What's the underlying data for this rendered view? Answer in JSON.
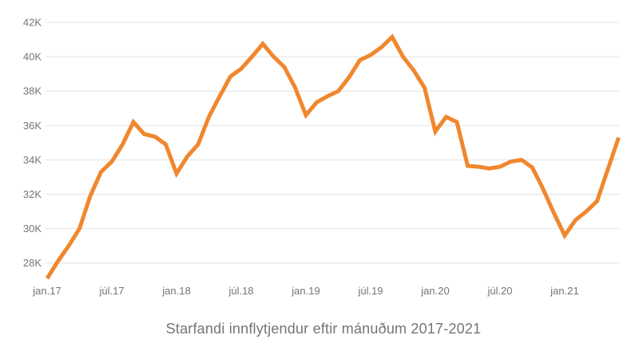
{
  "chart_data": {
    "type": "line",
    "title": "Starfandi innflytjendur eftir mánuðum 2017-2021",
    "series_name": "Starfandi innflytjendur",
    "legend": "none",
    "grid": true,
    "ylim": [
      26.95,
      42.3
    ],
    "y_ticks": [
      {
        "value": 42,
        "label": "42K"
      },
      {
        "value": 40,
        "label": "40K"
      },
      {
        "value": 38,
        "label": "38K"
      },
      {
        "value": 36,
        "label": "36K"
      },
      {
        "value": 34,
        "label": "34K"
      },
      {
        "value": 32,
        "label": "32K"
      },
      {
        "value": 30,
        "label": "30K"
      },
      {
        "value": 28,
        "label": "28K"
      }
    ],
    "x_ticks": [
      {
        "label": "jan.17",
        "month_index": 0
      },
      {
        "label": "júl.17",
        "month_index": 6
      },
      {
        "label": "jan.18",
        "month_index": 12
      },
      {
        "label": "júl.18",
        "month_index": 18
      },
      {
        "label": "jan.19",
        "month_index": 24
      },
      {
        "label": "júl.19",
        "month_index": 30
      },
      {
        "label": "jan.20",
        "month_index": 36
      },
      {
        "label": "júl.20",
        "month_index": 42
      },
      {
        "label": "jan.21",
        "month_index": 48
      }
    ],
    "x_months": [
      "jan.17",
      "feb.17",
      "mar.17",
      "apr.17",
      "maí.17",
      "jún.17",
      "júl.17",
      "ágú.17",
      "sep.17",
      "okt.17",
      "nóv.17",
      "des.17",
      "jan.18",
      "feb.18",
      "mar.18",
      "apr.18",
      "maí.18",
      "jún.18",
      "júl.18",
      "ágú.18",
      "sep.18",
      "okt.18",
      "nóv.18",
      "des.18",
      "jan.19",
      "feb.19",
      "mar.19",
      "apr.19",
      "maí.19",
      "jún.19",
      "júl.19",
      "ágú.19",
      "sep.19",
      "okt.19",
      "nóv.19",
      "des.19",
      "jan.20",
      "feb.20",
      "mar.20",
      "apr.20",
      "maí.20",
      "jún.20",
      "júl.20",
      "ágú.20",
      "sep.20",
      "okt.20",
      "nóv.20",
      "des.20",
      "jan.21",
      "feb.21",
      "mar.21",
      "apr.21",
      "maí.21",
      "jún.21"
    ],
    "values_thousands": [
      27.1,
      28.1,
      29.0,
      30.0,
      31.9,
      33.3,
      33.9,
      34.9,
      36.2,
      35.5,
      35.35,
      34.9,
      33.2,
      34.2,
      34.9,
      36.5,
      37.7,
      38.85,
      39.3,
      40.0,
      40.75,
      40.0,
      39.4,
      38.2,
      36.6,
      37.35,
      37.7,
      38.0,
      38.8,
      39.8,
      40.1,
      40.55,
      41.15,
      40.0,
      39.2,
      38.2,
      35.65,
      36.5,
      36.2,
      33.65,
      33.6,
      33.5,
      33.6,
      33.9,
      34.0,
      33.55,
      32.3,
      30.9,
      29.6,
      30.5,
      31.0,
      31.6,
      33.45,
      35.3
    ],
    "colors": {
      "line": "#F0872D",
      "grid": "#E3E3E3",
      "axis_text": "#757575",
      "background": "#FFFFFF"
    }
  }
}
